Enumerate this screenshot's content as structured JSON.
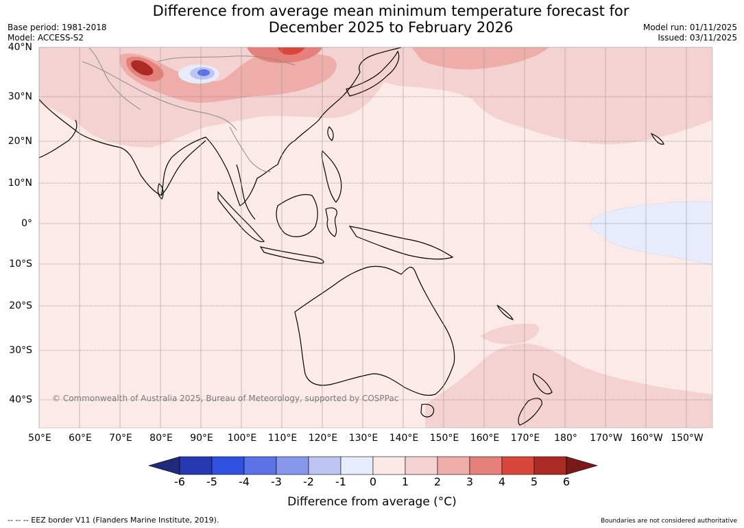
{
  "header": {
    "title_line1": "Difference from average mean minimum temperature forecast for",
    "title_line2": "December 2025 to February 2026",
    "base_period": "Base period: 1981-2018",
    "model": "Model: ACCESS-S2",
    "model_run": "Model run: 01/11/2025",
    "issued": "Issued: 03/11/2025"
  },
  "map": {
    "lon_labels": [
      "50°E",
      "60°E",
      "70°E",
      "80°E",
      "90°E",
      "100°E",
      "110°E",
      "120°E",
      "130°E",
      "140°E",
      "150°E",
      "160°E",
      "170°E",
      "180°",
      "170°W",
      "160°W",
      "150°W"
    ],
    "lat_labels": [
      "40°N",
      "30°N",
      "20°N",
      "10°N",
      "0°",
      "10°S",
      "20°S",
      "30°S",
      "40°S"
    ],
    "copyright": "© Commonwealth of Australia 2025, Bureau of Meteorology, supported by COSPPac"
  },
  "colorbar": {
    "labels": [
      "-6",
      "-5",
      "-4",
      "-3",
      "-2",
      "-1",
      "0",
      "1",
      "2",
      "3",
      "4",
      "5",
      "6"
    ],
    "colors": [
      "#1f2a7a",
      "#2838b0",
      "#3050e0",
      "#5b73e6",
      "#8797ec",
      "#bcc4f3",
      "#e7ebfb",
      "#fbe9e8",
      "#f4d2d1",
      "#eeada9",
      "#e6807a",
      "#d9473c",
      "#ab2a24",
      "#7a1a17"
    ],
    "title": "Difference from average (°C)"
  },
  "footer": {
    "eez_note": "-- -- -- EEZ border V11 (Flanders Marine Institute, 2019).",
    "boundaries_note": "Boundaries are not considered authoritative"
  }
}
